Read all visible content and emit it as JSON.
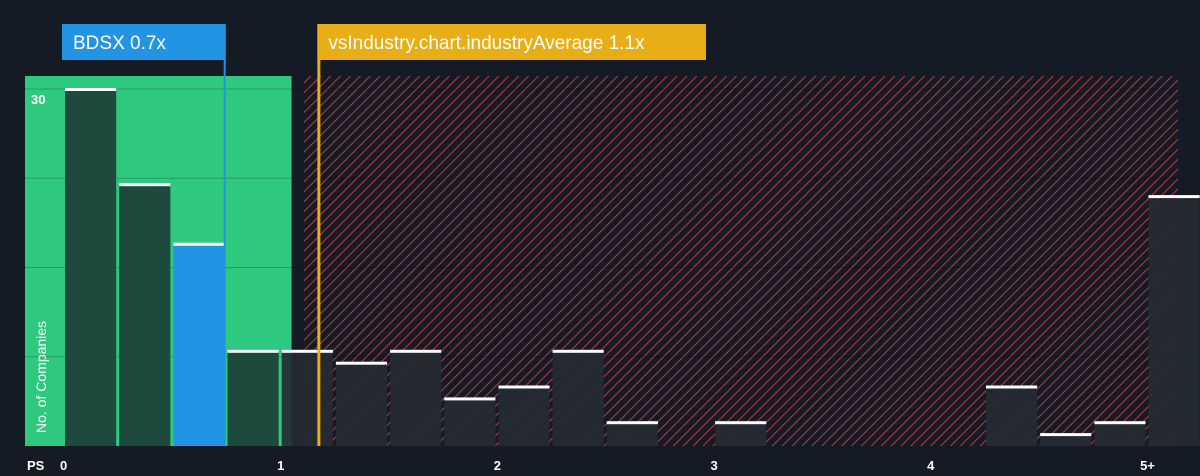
{
  "chart_data": {
    "type": "bar",
    "title": "",
    "xlabel": "PS",
    "ylabel": "No. of Companies",
    "x_tick_labels": [
      "0",
      "1",
      "2",
      "3",
      "4",
      "5+"
    ],
    "x_tick_values": [
      0,
      1,
      2,
      3,
      4,
      5
    ],
    "y_tick_labels": [
      "30"
    ],
    "y_tick_values": [
      30
    ],
    "xlim": [
      -0.1,
      5.1
    ],
    "ylim": [
      0,
      31
    ],
    "bin_width": 0.25,
    "bins": [
      {
        "x0": 0.0,
        "value": 30.0
      },
      {
        "x0": 0.25,
        "value": 22.0
      },
      {
        "x0": 0.5,
        "value": 17.0
      },
      {
        "x0": 0.75,
        "value": 8.0
      },
      {
        "x0": 1.0,
        "value": 8.0
      },
      {
        "x0": 1.25,
        "value": 7.0
      },
      {
        "x0": 1.5,
        "value": 8.0
      },
      {
        "x0": 1.75,
        "value": 4.0
      },
      {
        "x0": 2.0,
        "value": 5.0
      },
      {
        "x0": 2.25,
        "value": 8.0
      },
      {
        "x0": 2.5,
        "value": 2.0
      },
      {
        "x0": 2.75,
        "value": 0
      },
      {
        "x0": 3.0,
        "value": 2.0
      },
      {
        "x0": 3.25,
        "value": 0
      },
      {
        "x0": 3.5,
        "value": 0
      },
      {
        "x0": 3.75,
        "value": 0
      },
      {
        "x0": 4.0,
        "value": 0
      },
      {
        "x0": 4.25,
        "value": 5.0
      },
      {
        "x0": 4.5,
        "value": 1.0
      },
      {
        "x0": 4.75,
        "value": 2.0
      },
      {
        "x0": 5.0,
        "value": 21.0
      }
    ],
    "highlight_bin_x0": 0.5,
    "fair_range": [
      -0.1,
      1.05
    ],
    "company": {
      "label": "BDSX 0.7x",
      "value": 0.7
    },
    "industry": {
      "label": "vsIndustry.chart.industryAverage 1.1x",
      "value": 1.1
    },
    "grid": true,
    "colors": {
      "background": "#151b24",
      "fair_zone": "#2ec97e",
      "fair_bar": "#1d4a3c",
      "overvalued_stripe": "#c0393f",
      "overvalued_bar": "#242a33",
      "company": "#2394e3",
      "industry": "#e8ae17",
      "bar_top": "#ffffff"
    }
  }
}
